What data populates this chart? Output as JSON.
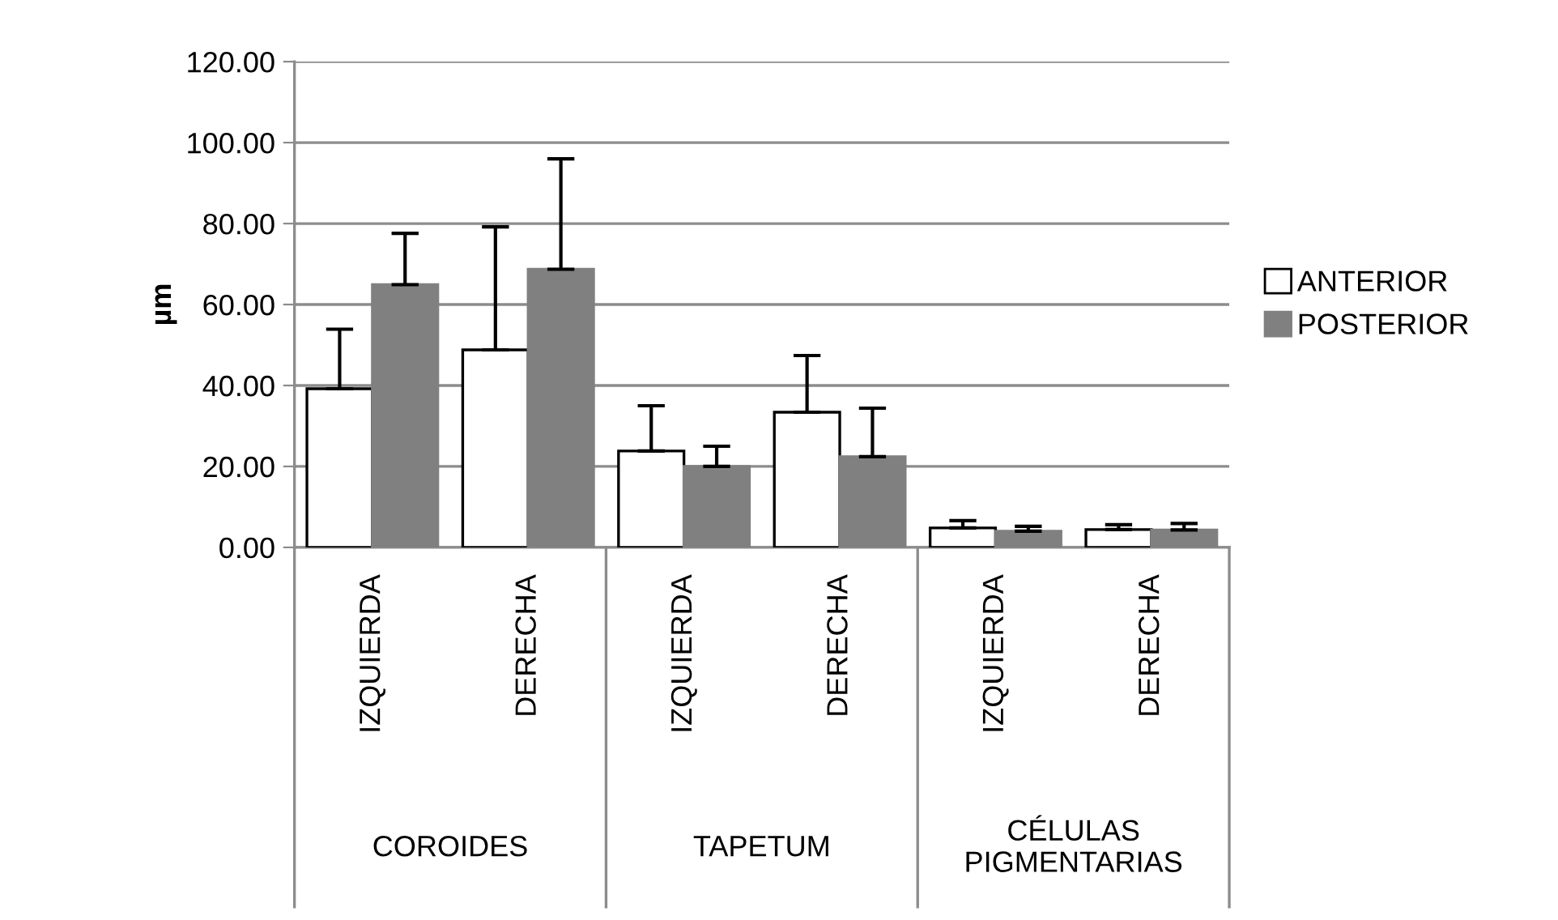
{
  "chart_data": {
    "type": "bar",
    "ylabel": "µm",
    "categories": [
      "IZQUIERDA",
      "DERECHA",
      "IZQUIERDA",
      "DERECHA",
      "IZQUIERDA",
      "DERECHA"
    ],
    "series": [
      {
        "name": "ANTERIOR",
        "color": "#ffffff",
        "values": [
          39.2,
          48.8,
          23.8,
          33.4,
          4.8,
          4.4
        ],
        "errors": [
          [
            39.2,
            53.9
          ],
          [
            48.8,
            79.2
          ],
          [
            23.8,
            35.0
          ],
          [
            33.4,
            47.4
          ],
          [
            4.8,
            6.6
          ],
          [
            4.4,
            5.6
          ]
        ]
      },
      {
        "name": "POSTERIOR",
        "color": "#808080",
        "values": [
          64.9,
          68.7,
          20.0,
          22.4,
          4.0,
          4.3
        ],
        "errors": [
          [
            64.9,
            77.6
          ],
          [
            68.7,
            96.0
          ],
          [
            20.0,
            25.0
          ],
          [
            22.4,
            34.4
          ],
          [
            4.0,
            5.2
          ],
          [
            4.3,
            5.9
          ]
        ]
      }
    ],
    "annotations": [
      "COROIDES",
      "TAPETUM",
      "CÉLULAS\nPIGMENTARIAS"
    ],
    "ylim": [
      0,
      120
    ],
    "yticks": [
      {
        "value": 0,
        "label": "0.00"
      },
      {
        "value": 20,
        "label": "20.00"
      },
      {
        "value": 40,
        "label": "40.00"
      },
      {
        "value": 60,
        "label": "60.00"
      },
      {
        "value": 80,
        "label": "80.00"
      },
      {
        "value": 100,
        "label": "100.00"
      },
      {
        "value": 120,
        "label": "120.00"
      }
    ],
    "grid": "y",
    "legend": "right"
  }
}
